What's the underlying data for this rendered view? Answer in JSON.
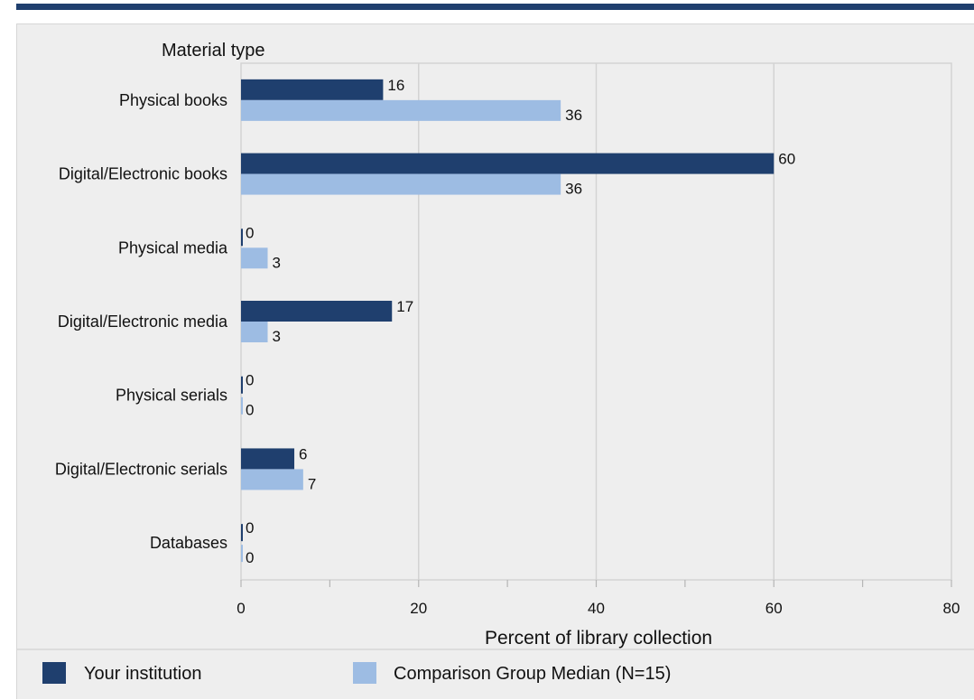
{
  "header": {
    "rule_color": "#1f3f6e"
  },
  "chart_data": {
    "type": "bar",
    "orientation": "horizontal",
    "title": "Material type",
    "xlabel": "Percent of library collection",
    "ylabel": "",
    "xlim": [
      0,
      80
    ],
    "xticks": [
      "0",
      "20",
      "40",
      "60",
      "80"
    ],
    "grid": true,
    "legend_position": "bottom",
    "categories": [
      "Physical books",
      "Digital/Electronic books",
      "Physical media",
      "Digital/Electronic media",
      "Physical serials",
      "Digital/Electronic serials",
      "Databases"
    ],
    "series": [
      {
        "name": "Your institution",
        "color": "#1f3f6e",
        "values": [
          16,
          60,
          0,
          17,
          0,
          6,
          0
        ]
      },
      {
        "name": "Comparison Group Median (N=15)",
        "color": "#9dbce3",
        "values": [
          36,
          36,
          3,
          3,
          0,
          7,
          0
        ]
      }
    ]
  }
}
